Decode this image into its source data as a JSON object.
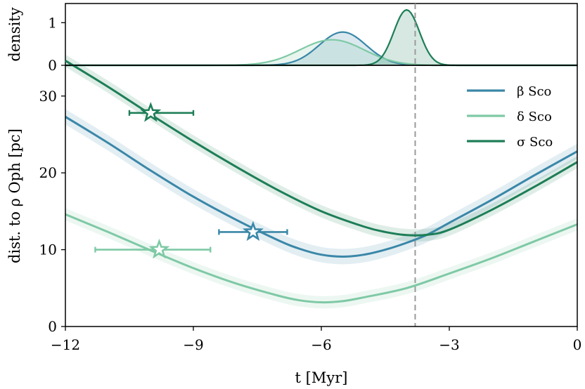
{
  "chart_data": [
    {
      "type": "area",
      "ylabel": "density",
      "xlim": [
        -12,
        0
      ],
      "ylim": [
        0,
        1.45
      ],
      "yticks": [
        0,
        1
      ],
      "yticklabels": [
        "0",
        "1"
      ],
      "series": [
        {
          "name": "β Sco",
          "kind": "gaussian",
          "mean": -5.5,
          "sd": 0.55,
          "peak": 0.78
        },
        {
          "name": "δ Sco",
          "kind": "gaussian",
          "mean": -5.75,
          "sd": 0.75,
          "peak": 0.6
        },
        {
          "name": "σ Sco",
          "kind": "gaussian",
          "mean": -4.0,
          "sd": 0.3,
          "peak": 1.3
        }
      ]
    },
    {
      "type": "line",
      "xlabel": "t [Myr]",
      "ylabel": "dist. to ρ Oph [pc]",
      "xlim": [
        -12,
        0
      ],
      "ylim": [
        0,
        34
      ],
      "xticks": [
        -12,
        -9,
        -6,
        -3,
        0
      ],
      "xticklabels": [
        "−12",
        "−9",
        "−6",
        "−3",
        "0"
      ],
      "yticks": [
        0,
        10,
        20,
        30
      ],
      "yticklabels": [
        "0",
        "10",
        "20",
        "30"
      ],
      "vline_x": -3.8,
      "legend": {
        "loc": "upper right"
      },
      "series": [
        {
          "name": "β Sco",
          "x": [
            -12,
            -11,
            -10,
            -9,
            -8,
            -7,
            -6.5,
            -6,
            -5.5,
            -5,
            -4.5,
            -4,
            -3.5,
            -3,
            -2,
            -1,
            0
          ],
          "y": [
            27.3,
            23.9,
            20.3,
            16.9,
            13.9,
            11.2,
            10.1,
            9.35,
            9.1,
            9.35,
            10.0,
            10.9,
            12.0,
            13.5,
            16.5,
            19.7,
            22.8
          ],
          "band": 1.0,
          "marker": {
            "x": -7.6,
            "y": 12.3,
            "xerr_low": -8.4,
            "xerr_high": -6.8
          }
        },
        {
          "name": "δ Sco",
          "x": [
            -12,
            -11,
            -10,
            -9,
            -8,
            -7,
            -6.5,
            -6,
            -5.5,
            -5,
            -4,
            -3,
            -2,
            -1,
            0
          ],
          "y": [
            14.6,
            12.3,
            9.9,
            7.6,
            5.6,
            4.0,
            3.4,
            3.15,
            3.3,
            3.8,
            5.0,
            6.9,
            8.9,
            11.1,
            13.3
          ],
          "band": 0.8,
          "marker": {
            "x": -9.8,
            "y": 10.0,
            "xerr_low": -11.3,
            "xerr_high": -8.6
          }
        },
        {
          "name": "σ Sco",
          "x": [
            -12,
            -11,
            -10,
            -9,
            -8,
            -7,
            -6,
            -5,
            -4.5,
            -4,
            -3.5,
            -3,
            -2,
            -1,
            0
          ],
          "y": [
            34.6,
            31.2,
            27.6,
            24.1,
            20.8,
            17.7,
            15.0,
            13.0,
            12.3,
            11.9,
            11.95,
            12.6,
            15.2,
            18.2,
            21.4
          ],
          "band": 0.8,
          "marker": {
            "x": -10.0,
            "y": 27.8,
            "xerr_low": -10.5,
            "xerr_high": -9.0
          }
        }
      ]
    }
  ],
  "colors": {
    "β Sco": "#3a87a8",
    "δ Sco": "#7ec9a5",
    "σ Sco": "#1d7e57",
    "vline": "#9a9a9a"
  }
}
